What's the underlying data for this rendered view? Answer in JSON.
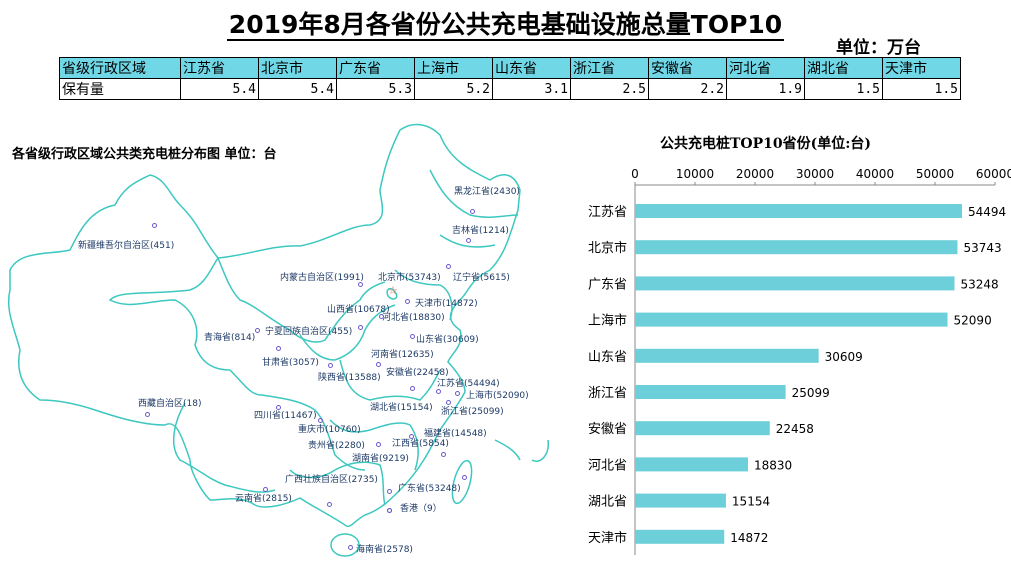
{
  "title": "2019年8月各省份公共充电基础设施总量TOP10",
  "unit": "单位：万台",
  "table": {
    "header_label": "省级行政区域",
    "row_label": "保有量",
    "provinces": [
      "江苏省",
      "北京市",
      "广东省",
      "上海市",
      "山东省",
      "浙江省",
      "安徽省",
      "河北省",
      "湖北省",
      "天津市"
    ],
    "values": [
      "5.4",
      "5.4",
      "5.3",
      "5.2",
      "3.1",
      "2.5",
      "2.2",
      "1.9",
      "1.5",
      "1.5"
    ],
    "header_color": "#6fd7e6"
  },
  "map": {
    "title": "各省级行政区域公共类充电桩分布图   单位：台",
    "border_color": "#3cc8c0",
    "labels": [
      "新疆维吾尔自治区(451)",
      "西藏自治区(18)",
      "青海省(814)",
      "宁夏回族自治区(455)",
      "甘肃省(3057)",
      "内蒙古自治区(1991)",
      "北京市(53743)",
      "天津市(14872)",
      "山西省(10678)",
      "河北省(18830)",
      "山东省(30609)",
      "河南省(12635)",
      "陕西省(13588)",
      "安徽省(22458)",
      "江苏省(54494)",
      "上海市(52090)",
      "浙江省(25099)",
      "湖北省(15154)",
      "四川省(11467)",
      "重庆市(10760)",
      "福建省(14548)",
      "贵州省(2280)",
      "江西省(5854)",
      "湖南省(9219)",
      "广西壮族自治区(2735)",
      "广东省(53248)",
      "云南省(2815)",
      "香港（9）",
      "海南省(2578)",
      "黑龙江省(2430)",
      "吉林省(1214)",
      "辽宁省(5615)"
    ]
  },
  "chart_data": {
    "type": "bar",
    "orientation": "horizontal",
    "title": "公共充电桩TOP10省份(单位:台)",
    "categories": [
      "江苏省",
      "北京市",
      "广东省",
      "上海市",
      "山东省",
      "浙江省",
      "安徽省",
      "河北省",
      "湖北省",
      "天津市"
    ],
    "values": [
      54494,
      53743,
      53248,
      52090,
      30609,
      25099,
      22458,
      18830,
      15154,
      14872
    ],
    "xlim": [
      0,
      60000
    ],
    "x_ticks": [
      "0",
      "10000",
      "20000",
      "30000",
      "40000",
      "50000",
      "60000"
    ],
    "axis_position": "top",
    "grid": false,
    "bar_color": "#6dcfd9"
  }
}
